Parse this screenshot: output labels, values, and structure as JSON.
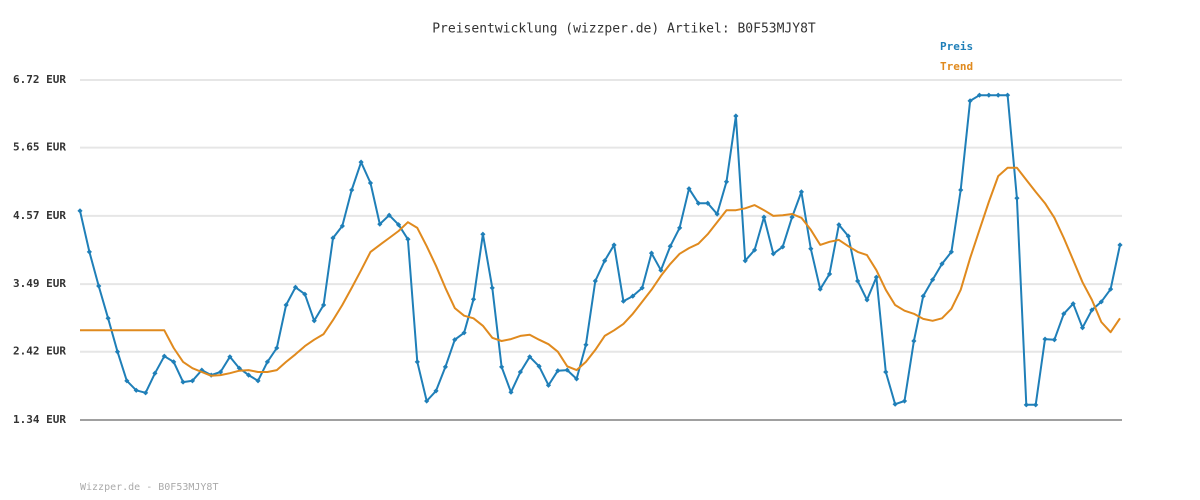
{
  "chart_data": {
    "type": "line",
    "title": "Preisentwicklung (wizzper.de) Artikel: B0F53MJY8T",
    "footer": "Wizzper.de - B0F53MJY8T",
    "ylim": [
      1.34,
      6.72
    ],
    "yticks": [
      {
        "value": 1.34,
        "label": "1.34 EUR"
      },
      {
        "value": 2.42,
        "label": "2.42 EUR"
      },
      {
        "value": 3.49,
        "label": "3.49 EUR"
      },
      {
        "value": 4.57,
        "label": "4.57 EUR"
      },
      {
        "value": 5.65,
        "label": "5.65 EUR"
      },
      {
        "value": 6.72,
        "label": "6.72 EUR"
      }
    ],
    "grid": true,
    "legend": "top-right",
    "series": [
      {
        "name": "Preis",
        "color": "#1f7fb8",
        "markers": true,
        "values": [
          4.65,
          4.0,
          3.46,
          2.95,
          2.42,
          1.96,
          1.81,
          1.77,
          2.08,
          2.35,
          2.26,
          1.94,
          1.96,
          2.13,
          2.05,
          2.1,
          2.34,
          2.16,
          2.05,
          1.96,
          2.26,
          2.48,
          3.16,
          3.44,
          3.33,
          2.91,
          3.16,
          4.22,
          4.41,
          4.98,
          5.42,
          5.09,
          4.44,
          4.58,
          4.43,
          4.2,
          2.26,
          1.64,
          1.8,
          2.18,
          2.61,
          2.72,
          3.25,
          4.28,
          3.43,
          2.18,
          1.78,
          2.1,
          2.34,
          2.19,
          1.89,
          2.12,
          2.13,
          1.99,
          2.53,
          3.54,
          3.86,
          4.11,
          3.22,
          3.3,
          3.43,
          3.98,
          3.71,
          4.09,
          4.38,
          5.0,
          4.77,
          4.77,
          4.6,
          5.11,
          6.15,
          3.86,
          4.03,
          4.55,
          3.97,
          4.08,
          4.55,
          4.95,
          4.05,
          3.41,
          3.65,
          4.43,
          4.25,
          3.54,
          3.24,
          3.6,
          2.1,
          1.59,
          1.64,
          2.59,
          3.3,
          3.56,
          3.81,
          4.0,
          4.98,
          6.39,
          6.48,
          6.48,
          6.48,
          6.48,
          4.85,
          1.58,
          1.58,
          2.62,
          2.61,
          3.02,
          3.18,
          2.8,
          3.08,
          3.21,
          3.41,
          4.11
        ]
      },
      {
        "name": "Trend",
        "color": "#e08a1e",
        "markers": false,
        "values": [
          2.76,
          2.76,
          2.76,
          2.76,
          2.76,
          2.76,
          2.76,
          2.76,
          2.76,
          2.76,
          2.48,
          2.26,
          2.16,
          2.1,
          2.04,
          2.05,
          2.08,
          2.12,
          2.13,
          2.1,
          2.1,
          2.13,
          2.26,
          2.38,
          2.51,
          2.61,
          2.7,
          2.92,
          3.16,
          3.43,
          3.71,
          4.0,
          4.11,
          4.22,
          4.33,
          4.47,
          4.38,
          4.09,
          3.78,
          3.43,
          3.11,
          2.99,
          2.95,
          2.83,
          2.64,
          2.59,
          2.62,
          2.67,
          2.69,
          2.61,
          2.54,
          2.42,
          2.19,
          2.13,
          2.26,
          2.45,
          2.67,
          2.76,
          2.86,
          3.02,
          3.21,
          3.4,
          3.62,
          3.81,
          3.97,
          4.06,
          4.13,
          4.28,
          4.47,
          4.66,
          4.66,
          4.69,
          4.74,
          4.66,
          4.57,
          4.58,
          4.6,
          4.54,
          4.35,
          4.11,
          4.16,
          4.19,
          4.09,
          4.0,
          3.95,
          3.71,
          3.4,
          3.16,
          3.07,
          3.02,
          2.94,
          2.91,
          2.95,
          3.1,
          3.4,
          3.9,
          4.35,
          4.79,
          5.2,
          5.33,
          5.33,
          5.14,
          4.95,
          4.77,
          4.54,
          4.22,
          3.87,
          3.52,
          3.24,
          2.89,
          2.73,
          2.95
        ]
      }
    ]
  }
}
